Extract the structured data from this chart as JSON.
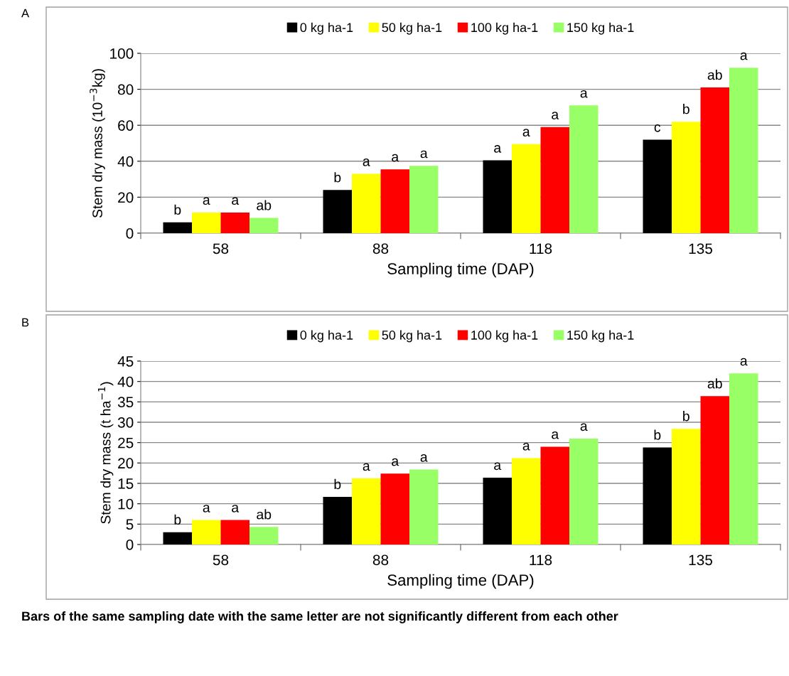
{
  "chart_data": [
    {
      "type": "bar",
      "xlabel": "Sampling time (DAP)",
      "ylabel": "Stem dry mass (10$^{−3}$kg)",
      "categories": [
        "58",
        "88",
        "118",
        "135"
      ],
      "ylim": [
        0,
        100
      ],
      "yticks": [
        0,
        20,
        40,
        60,
        80,
        100
      ],
      "grid": "y",
      "legend": "top",
      "series": [
        {
          "name": "0 kg ha-1",
          "color": "#000000",
          "values": [
            6,
            24,
            40.5,
            52
          ]
        },
        {
          "name": "50 kg ha-1",
          "color": "#ffff00",
          "values": [
            11.5,
            33,
            49.5,
            62
          ]
        },
        {
          "name": "100 kg ha-1",
          "color": "#ff0000",
          "values": [
            11.5,
            35.5,
            59,
            81
          ]
        },
        {
          "name": "150 kg ha-1",
          "color": "#99ff66",
          "values": [
            8.5,
            37.5,
            71,
            92
          ]
        }
      ],
      "annotations": [
        "A",
        "b",
        "a",
        "a",
        "ab",
        "b",
        "a",
        "a",
        "a",
        "a",
        "a",
        "a",
        "a",
        "c",
        "b",
        "ab",
        "a"
      ]
    },
    {
      "type": "bar",
      "xlabel": "Sampling time (DAP)",
      "ylabel": "Stem dry mass (t ha$^{−1}$)",
      "categories": [
        "58",
        "88",
        "118",
        "135"
      ],
      "ylim": [
        0,
        45
      ],
      "yticks": [
        0,
        5,
        10,
        15,
        20,
        25,
        30,
        35,
        40,
        45
      ],
      "grid": "y",
      "legend": "top",
      "series": [
        {
          "name": "0 kg ha-1",
          "color": "#000000",
          "values": [
            3,
            11.7,
            16.4,
            23.8
          ]
        },
        {
          "name": "50 kg ha-1",
          "color": "#ffff00",
          "values": [
            6,
            16.2,
            21.2,
            28.4
          ]
        },
        {
          "name": "100 kg ha-1",
          "color": "#ff0000",
          "values": [
            6,
            17.4,
            24,
            36.4
          ]
        },
        {
          "name": "150 kg ha-1",
          "color": "#99ff66",
          "values": [
            4.3,
            18.4,
            26,
            42
          ]
        }
      ],
      "annotations": [
        "B",
        "b",
        "a",
        "a",
        "ab",
        "b",
        "a",
        "a",
        "a",
        "a",
        "a",
        "a",
        "a",
        "b",
        "b",
        "ab",
        "a",
        "Bars of the same sampling date with the same letter are not significantly different from each other"
      ]
    }
  ]
}
